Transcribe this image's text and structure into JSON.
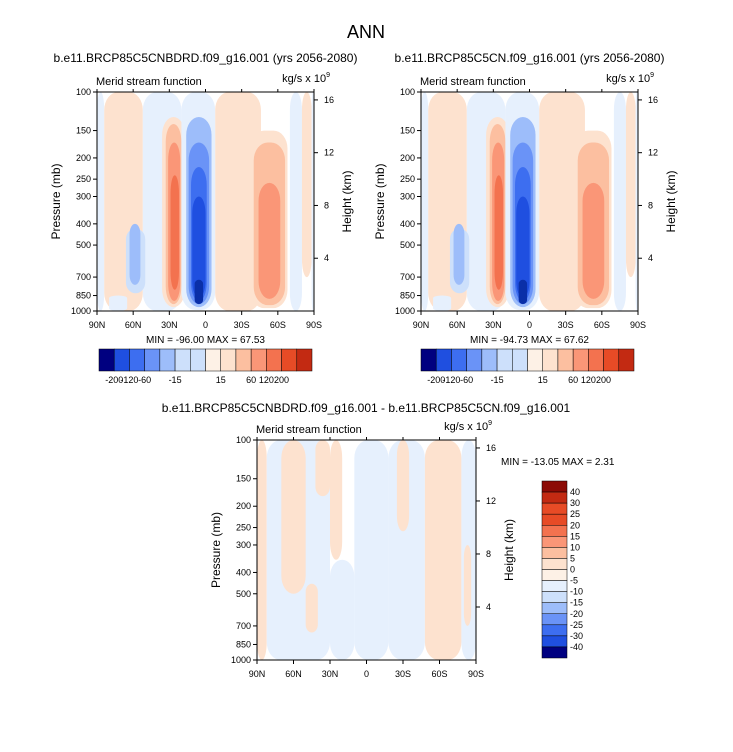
{
  "figure": {
    "title": "ANN",
    "stat_prefix_min": "MIN = ",
    "stat_prefix_max": "MAX = "
  },
  "colors": {
    "cold": [
      "#000080",
      "#0a2fa8",
      "#1f4fe0",
      "#3d6ef0",
      "#6a93f7",
      "#9dbdfa",
      "#cde0fb",
      "#e6f0fd"
    ],
    "warm": [
      "#fdf1e6",
      "#fde2cf",
      "#fcbfa0",
      "#fa9677",
      "#f3724f",
      "#e74b26",
      "#c32a12",
      "#8c0b05"
    ],
    "background": "#ffffff"
  },
  "chart_data": [
    {
      "type": "contour",
      "id": "top_left",
      "title": "b.e11.BRCP85C5CNBDRD.f09_g16.001 (yrs 2056-2080)",
      "field_label": "Merid stream function",
      "units_base": "kg/s x 10",
      "units_exp": "9",
      "xlabel": "",
      "ylabel": "Pressure (mb)",
      "y2label": "Height (km)",
      "x_ticks": [
        "90N",
        "60N",
        "30N",
        "0",
        "30S",
        "60S",
        "90S"
      ],
      "y_ticks": [
        "100",
        "150",
        "200",
        "250",
        "300",
        "400",
        "500",
        "700",
        "850",
        "1000"
      ],
      "y_tick_values": [
        100,
        150,
        200,
        250,
        300,
        400,
        500,
        700,
        850,
        1000
      ],
      "y2_ticks": [
        "16",
        "12",
        "8",
        "4"
      ],
      "y2_tick_values": [
        16,
        12,
        8,
        4
      ],
      "xlim": [
        90,
        -90
      ],
      "ylim": [
        100,
        1000
      ],
      "min": "-96.00",
      "max": "67.53",
      "cells": [
        {
          "lat": [
            90,
            84
          ],
          "p": [
            100,
            1000
          ],
          "v": -5
        },
        {
          "lat": [
            84,
            52
          ],
          "p": [
            100,
            1000
          ],
          "v": 5
        },
        {
          "lat": [
            52,
            20
          ],
          "p": [
            100,
            1000
          ],
          "v": -5
        },
        {
          "lat": [
            80,
            65
          ],
          "p": [
            850,
            1000
          ],
          "v": -5
        },
        {
          "lat": [
            66,
            50
          ],
          "p": [
            420,
            830
          ],
          "v": -10
        },
        {
          "lat": [
            63,
            54
          ],
          "p": [
            400,
            760
          ],
          "v": -15
        },
        {
          "lat": [
            36,
            17
          ],
          "p": [
            130,
            960
          ],
          "v": 5
        },
        {
          "lat": [
            33,
            20
          ],
          "p": [
            140,
            930
          ],
          "v": 15
        },
        {
          "lat": [
            31,
            21
          ],
          "p": [
            170,
            900
          ],
          "v": 30
        },
        {
          "lat": [
            29,
            22
          ],
          "p": [
            240,
            800
          ],
          "v": 60
        },
        {
          "lat": [
            -8,
            -46
          ],
          "p": [
            100,
            1000
          ],
          "v": 5
        },
        {
          "lat": [
            20,
            -8
          ],
          "p": [
            100,
            990
          ],
          "v": -5
        },
        {
          "lat": [
            16,
            -5
          ],
          "p": [
            130,
            960
          ],
          "v": -15
        },
        {
          "lat": [
            14,
            -3
          ],
          "p": [
            170,
            930
          ],
          "v": -30
        },
        {
          "lat": [
            12,
            -1
          ],
          "p": [
            220,
            900
          ],
          "v": -60
        },
        {
          "lat": [
            11,
            0
          ],
          "p": [
            300,
            870
          ],
          "v": -120
        },
        {
          "lat": [
            9,
            2
          ],
          "p": [
            720,
            930
          ],
          "v": -200
        },
        {
          "lat": [
            -37,
            -68
          ],
          "p": [
            150,
            970
          ],
          "v": 5
        },
        {
          "lat": [
            -40,
            -66
          ],
          "p": [
            170,
            940
          ],
          "v": 15
        },
        {
          "lat": [
            -44,
            -62
          ],
          "p": [
            260,
            880
          ],
          "v": 30
        },
        {
          "lat": [
            -70,
            -80
          ],
          "p": [
            100,
            1000
          ],
          "v": -5
        },
        {
          "lat": [
            -80,
            -88
          ],
          "p": [
            100,
            700
          ],
          "v": 5
        },
        {
          "lat": [
            -88,
            -90
          ],
          "p": [
            100,
            1000
          ],
          "v": -5
        }
      ]
    },
    {
      "type": "contour",
      "id": "top_right",
      "title": "b.e11.BRCP85C5CN.f09_g16.001 (yrs 2056-2080)",
      "field_label": "Merid stream function",
      "units_base": "kg/s x 10",
      "units_exp": "9",
      "xlabel": "",
      "ylabel": "Pressure (mb)",
      "y2label": "Height (km)",
      "x_ticks": [
        "90N",
        "60N",
        "30N",
        "0",
        "30S",
        "60S",
        "90S"
      ],
      "y_ticks": [
        "100",
        "150",
        "200",
        "250",
        "300",
        "400",
        "500",
        "700",
        "850",
        "1000"
      ],
      "y_tick_values": [
        100,
        150,
        200,
        250,
        300,
        400,
        500,
        700,
        850,
        1000
      ],
      "y2_ticks": [
        "16",
        "12",
        "8",
        "4"
      ],
      "y2_tick_values": [
        16,
        12,
        8,
        4
      ],
      "xlim": [
        90,
        -90
      ],
      "ylim": [
        100,
        1000
      ],
      "min": "-94.73",
      "max": "67.62",
      "cells": [
        {
          "lat": [
            90,
            84
          ],
          "p": [
            100,
            1000
          ],
          "v": -5
        },
        {
          "lat": [
            84,
            52
          ],
          "p": [
            100,
            1000
          ],
          "v": 5
        },
        {
          "lat": [
            52,
            20
          ],
          "p": [
            100,
            1000
          ],
          "v": -5
        },
        {
          "lat": [
            80,
            65
          ],
          "p": [
            850,
            1000
          ],
          "v": -5
        },
        {
          "lat": [
            66,
            50
          ],
          "p": [
            420,
            830
          ],
          "v": -10
        },
        {
          "lat": [
            63,
            54
          ],
          "p": [
            400,
            760
          ],
          "v": -15
        },
        {
          "lat": [
            36,
            17
          ],
          "p": [
            130,
            960
          ],
          "v": 5
        },
        {
          "lat": [
            33,
            20
          ],
          "p": [
            140,
            930
          ],
          "v": 15
        },
        {
          "lat": [
            31,
            21
          ],
          "p": [
            170,
            900
          ],
          "v": 30
        },
        {
          "lat": [
            29,
            22
          ],
          "p": [
            240,
            800
          ],
          "v": 60
        },
        {
          "lat": [
            -8,
            -46
          ],
          "p": [
            100,
            1000
          ],
          "v": 5
        },
        {
          "lat": [
            20,
            -8
          ],
          "p": [
            100,
            990
          ],
          "v": -5
        },
        {
          "lat": [
            16,
            -5
          ],
          "p": [
            130,
            960
          ],
          "v": -15
        },
        {
          "lat": [
            14,
            -3
          ],
          "p": [
            170,
            930
          ],
          "v": -30
        },
        {
          "lat": [
            12,
            -1
          ],
          "p": [
            220,
            900
          ],
          "v": -60
        },
        {
          "lat": [
            11,
            0
          ],
          "p": [
            300,
            870
          ],
          "v": -120
        },
        {
          "lat": [
            9,
            2
          ],
          "p": [
            720,
            930
          ],
          "v": -200
        },
        {
          "lat": [
            -37,
            -68
          ],
          "p": [
            150,
            970
          ],
          "v": 5
        },
        {
          "lat": [
            -40,
            -66
          ],
          "p": [
            170,
            940
          ],
          "v": 15
        },
        {
          "lat": [
            -44,
            -62
          ],
          "p": [
            260,
            880
          ],
          "v": 30
        },
        {
          "lat": [
            -70,
            -80
          ],
          "p": [
            100,
            1000
          ],
          "v": -5
        },
        {
          "lat": [
            -80,
            -88
          ],
          "p": [
            100,
            700
          ],
          "v": 5
        },
        {
          "lat": [
            -88,
            -90
          ],
          "p": [
            100,
            1000
          ],
          "v": -5
        }
      ]
    },
    {
      "type": "contour",
      "id": "bottom_diff",
      "title": "b.e11.BRCP85C5CNBDRD.f09_g16.001 - b.e11.BRCP85C5CN.f09_g16.001",
      "field_label": "Merid stream function",
      "units_base": "kg/s x 10",
      "units_exp": "9",
      "xlabel": "",
      "ylabel": "Pressure (mb)",
      "y2label": "Height (km)",
      "x_ticks": [
        "90N",
        "60N",
        "30N",
        "0",
        "30S",
        "60S",
        "90S"
      ],
      "y_ticks": [
        "100",
        "150",
        "200",
        "250",
        "300",
        "400",
        "500",
        "700",
        "850",
        "1000"
      ],
      "y_tick_values": [
        100,
        150,
        200,
        250,
        300,
        400,
        500,
        700,
        850,
        1000
      ],
      "y2_ticks": [
        "16",
        "12",
        "8",
        "4"
      ],
      "y2_tick_values": [
        16,
        12,
        8,
        4
      ],
      "xlim": [
        90,
        -90
      ],
      "ylim": [
        100,
        1000
      ],
      "min": "-13.05",
      "max": "2.31",
      "cells": [
        {
          "lat": [
            90,
            82
          ],
          "p": [
            100,
            1000
          ],
          "v": 5
        },
        {
          "lat": [
            82,
            30
          ],
          "p": [
            100,
            1000
          ],
          "v": -5
        },
        {
          "lat": [
            70,
            50
          ],
          "p": [
            100,
            500
          ],
          "v": 5
        },
        {
          "lat": [
            42,
            30
          ],
          "p": [
            100,
            180
          ],
          "v": 5
        },
        {
          "lat": [
            50,
            40
          ],
          "p": [
            450,
            750
          ],
          "v": 5
        },
        {
          "lat": [
            10,
            -18
          ],
          "p": [
            100,
            1000
          ],
          "v": -5
        },
        {
          "lat": [
            30,
            10
          ],
          "p": [
            350,
            1000
          ],
          "v": -5
        },
        {
          "lat": [
            30,
            20
          ],
          "p": [
            100,
            350
          ],
          "v": 5
        },
        {
          "lat": [
            -18,
            -48
          ],
          "p": [
            100,
            1000
          ],
          "v": -5
        },
        {
          "lat": [
            -25,
            -35
          ],
          "p": [
            100,
            260
          ],
          "v": 5
        },
        {
          "lat": [
            -48,
            -78
          ],
          "p": [
            100,
            1000
          ],
          "v": 5
        },
        {
          "lat": [
            -78,
            -90
          ],
          "p": [
            100,
            1000
          ],
          "v": -5
        },
        {
          "lat": [
            -80,
            -86
          ],
          "p": [
            300,
            700
          ],
          "v": 5
        }
      ]
    }
  ],
  "colorbars": [
    {
      "id": "top_left_bar",
      "orientation": "horizontal",
      "levels": [
        -200,
        -120,
        -60,
        -30,
        -15,
        -5,
        0,
        5,
        15,
        30,
        60,
        120,
        200
      ],
      "labels": [
        "-200",
        "-120",
        "-60",
        "-15",
        "15",
        "60",
        "120",
        "200"
      ]
    },
    {
      "id": "top_right_bar",
      "orientation": "horizontal",
      "levels": [
        -200,
        -120,
        -60,
        -30,
        -15,
        -5,
        0,
        5,
        15,
        30,
        60,
        120,
        200
      ],
      "labels": [
        "-200",
        "-120",
        "-60",
        "-15",
        "15",
        "60",
        "120",
        "200"
      ]
    },
    {
      "id": "diff_bar",
      "orientation": "vertical",
      "levels": [
        40,
        30,
        25,
        20,
        15,
        10,
        5,
        0,
        -5,
        -10,
        -15,
        -20,
        -25,
        -30,
        -40
      ],
      "labels": [
        "40",
        "30",
        "25",
        "20",
        "15",
        "10",
        "5",
        "0",
        "-5",
        "-10",
        "-15",
        "-20",
        "-25",
        "-30",
        "-40"
      ]
    }
  ]
}
